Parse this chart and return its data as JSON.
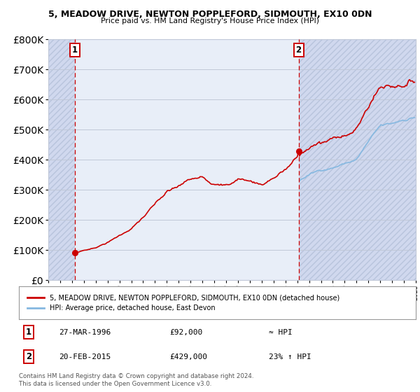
{
  "title1": "5, MEADOW DRIVE, NEWTON POPPLEFORD, SIDMOUTH, EX10 0DN",
  "title2": "Price paid vs. HM Land Registry's House Price Index (HPI)",
  "background_color": "#e8eef8",
  "hatch_color": "#d0d8ee",
  "grid_color": "#c0c8d8",
  "sale1_date": 1996.23,
  "sale1_price": 92000,
  "sale2_date": 2015.12,
  "sale2_price": 429000,
  "property_line_color": "#cc0000",
  "hpi_line_color": "#85b8e0",
  "dashed_line_color": "#cc0000",
  "legend_property": "5, MEADOW DRIVE, NEWTON POPPLEFORD, SIDMOUTH, EX10 0DN (detached house)",
  "legend_hpi": "HPI: Average price, detached house, East Devon",
  "annotation1_date": "27-MAR-1996",
  "annotation1_price": "£92,000",
  "annotation1_hpi": "≈ HPI",
  "annotation2_date": "20-FEB-2015",
  "annotation2_price": "£429,000",
  "annotation2_hpi": "23% ↑ HPI",
  "footer": "Contains HM Land Registry data © Crown copyright and database right 2024.\nThis data is licensed under the Open Government Licence v3.0.",
  "ylim_max": 800000,
  "xmin": 1994,
  "xmax": 2025
}
